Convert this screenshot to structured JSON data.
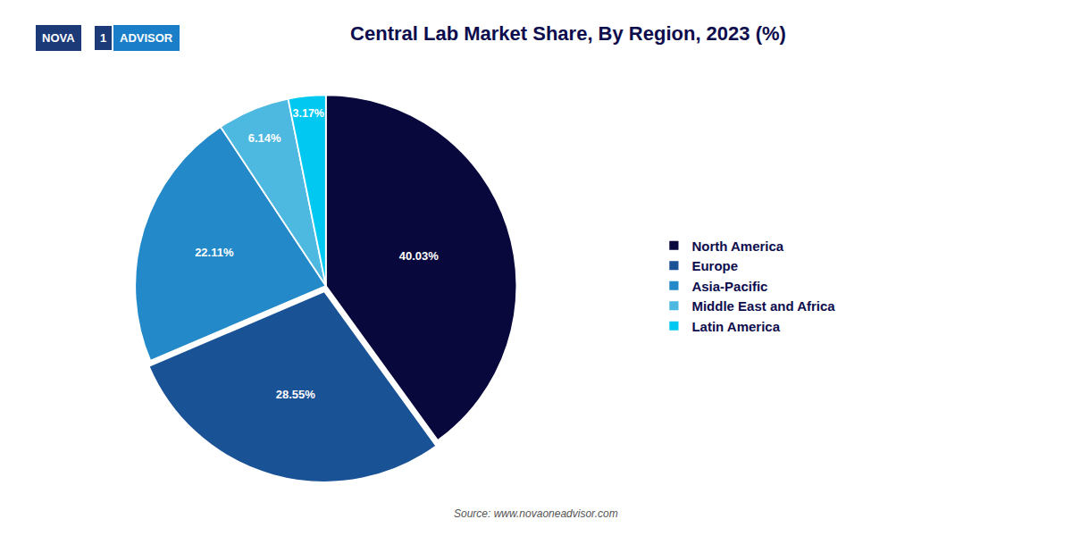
{
  "chart_data": {
    "type": "pie",
    "title": "Central Lab Market Share, By Region, 2023 (%)",
    "categories": [
      "North America",
      "Europe",
      "Asia-Pacific",
      "Middle East and Africa",
      "Latin America"
    ],
    "values": [
      40.03,
      28.55,
      22.11,
      6.14,
      3.17
    ],
    "value_labels": [
      "40.03%",
      "28.55%",
      "22.11%",
      "6.14%",
      "3.17%"
    ],
    "colors": [
      "#08083d",
      "#1a5296",
      "#2389c8",
      "#4db8e0",
      "#00c8f0"
    ],
    "data_labels": true,
    "legend": "right",
    "annotations": [
      "NOVA",
      "1",
      "ADVISOR",
      "Source: www.novaoneadvisor.com"
    ]
  }
}
